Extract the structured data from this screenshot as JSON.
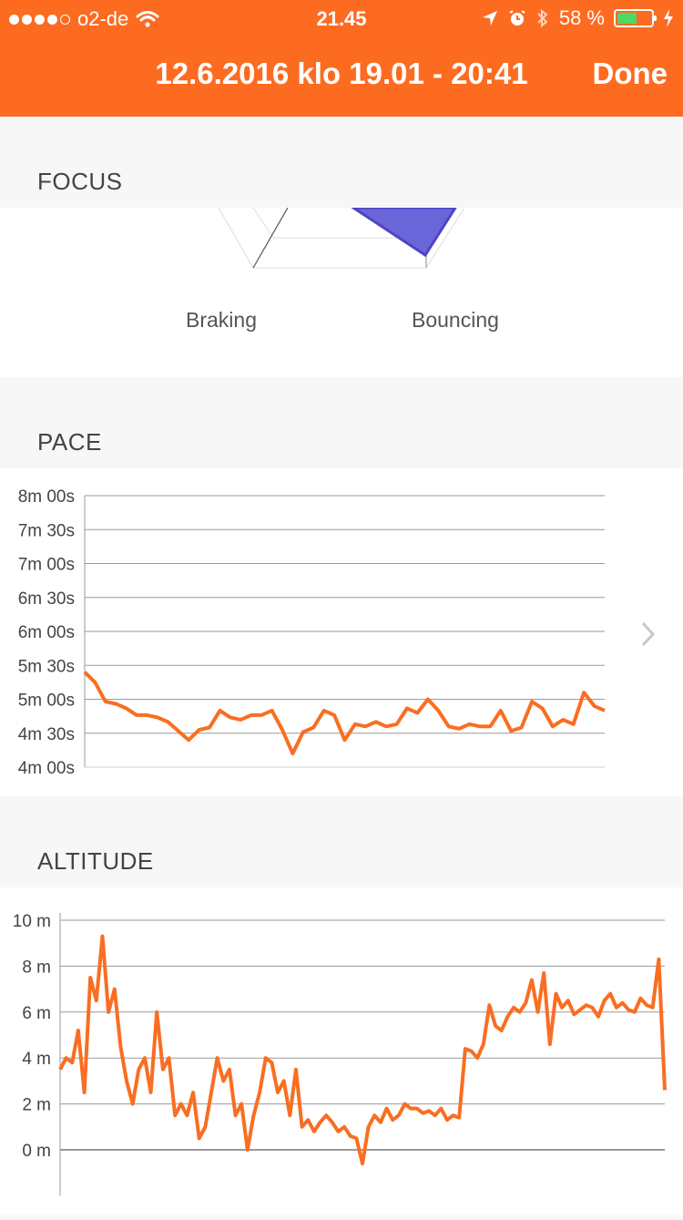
{
  "status_bar": {
    "carrier": "o2-de",
    "time": "21.45",
    "battery": "58 %",
    "battery_level": 0.58,
    "signal_filled": 4,
    "signal_total": 5,
    "battery_color": "#4cd964"
  },
  "nav": {
    "title": "12.6.2016 klo 19.01 - 20:41",
    "done_label": "Done",
    "accent": "#fd6b21"
  },
  "focus": {
    "header": "FOCUS",
    "labels": [
      "Braking",
      "Bouncing"
    ],
    "fill_color": "#6a65d8"
  },
  "chevron_icon": "chevron-right-icon",
  "pace": {
    "header": "PACE",
    "chart_data": {
      "type": "line",
      "title": "",
      "xlabel": "",
      "ylabel": "",
      "y_ticks": [
        "8m 00s",
        "7m 30s",
        "7m 00s",
        "6m 30s",
        "6m 00s",
        "5m 30s",
        "5m 00s",
        "4m 30s",
        "4m 00s"
      ],
      "ylim_seconds": [
        240,
        480
      ],
      "grid": true,
      "series": [
        {
          "color": "#f96e22",
          "x": [
            0,
            2,
            4,
            6,
            8,
            10,
            12,
            14,
            16,
            18,
            20,
            22,
            24,
            26,
            28,
            30,
            32,
            34,
            36,
            38,
            40,
            42,
            44,
            46,
            48,
            50,
            52,
            54,
            56,
            58,
            60,
            62,
            64,
            66,
            68,
            70,
            72,
            74,
            76,
            78,
            80,
            82,
            84,
            86,
            88,
            90,
            92,
            94,
            96,
            98,
            100
          ],
          "y_seconds": [
            324,
            315,
            298,
            296,
            292,
            286,
            286,
            284,
            280,
            272,
            264,
            273,
            275,
            290,
            284,
            282,
            286,
            286,
            290,
            273,
            252,
            271,
            275,
            290,
            286,
            264,
            278,
            276,
            280,
            276,
            278,
            292,
            288,
            300,
            290,
            276,
            274,
            278,
            276,
            276,
            290,
            272,
            275,
            298,
            292,
            276,
            282,
            278,
            306,
            294,
            290
          ]
        }
      ]
    }
  },
  "altitude": {
    "header": "ALTITUDE",
    "chart_data": {
      "type": "line",
      "title": "",
      "xlabel": "",
      "ylabel": "",
      "y_ticks": [
        "10 m",
        "8 m",
        "6 m",
        "4 m",
        "2 m",
        "0 m"
      ],
      "ylim": [
        -1.6,
        10
      ],
      "grid": true,
      "series": [
        {
          "color": "#f96e22",
          "x": [
            0,
            1,
            2,
            3,
            4,
            5,
            6,
            7,
            8,
            9,
            10,
            11,
            12,
            13,
            14,
            15,
            16,
            17,
            18,
            19,
            20,
            21,
            22,
            23,
            24,
            25,
            26,
            27,
            28,
            29,
            30,
            31,
            32,
            33,
            34,
            35,
            36,
            37,
            38,
            39,
            40,
            41,
            42,
            43,
            44,
            45,
            46,
            47,
            48,
            49,
            50,
            51,
            52,
            53,
            54,
            55,
            56,
            57,
            58,
            59,
            60,
            61,
            62,
            63,
            64,
            65,
            66,
            67,
            68,
            69,
            70,
            71,
            72,
            73,
            74,
            75,
            76,
            77,
            78,
            79,
            80,
            81,
            82,
            83,
            84,
            85,
            86,
            87,
            88,
            89,
            90,
            91,
            92,
            93,
            94,
            95,
            96,
            97,
            98,
            99,
            100
          ],
          "y": [
            3.5,
            4,
            3.8,
            5.2,
            2.5,
            7.5,
            6.5,
            9.3,
            6,
            7,
            4.5,
            3,
            2,
            3.5,
            4,
            2.5,
            6,
            3.5,
            4,
            1.5,
            2,
            1.5,
            2.5,
            0.5,
            1,
            2.5,
            4,
            3,
            3.5,
            1.5,
            2,
            0,
            1.5,
            2.5,
            4,
            3.8,
            2.5,
            3,
            1.5,
            3.5,
            1,
            1.3,
            0.8,
            1.2,
            1.5,
            1.2,
            0.8,
            1,
            0.6,
            0.5,
            -0.6,
            1,
            1.5,
            1.2,
            1.8,
            1.3,
            1.5,
            2,
            1.8,
            1.8,
            1.6,
            1.7,
            1.5,
            1.8,
            1.3,
            1.5,
            1.4,
            4.4,
            4.3,
            4.0,
            4.6,
            6.3,
            5.4,
            5.2,
            5.8,
            6.2,
            6.0,
            6.4,
            7.4,
            6.0,
            7.7,
            4.6,
            6.8,
            6.2,
            6.5,
            5.9,
            6.1,
            6.3,
            6.2,
            5.8,
            6.5,
            6.8,
            6.2,
            6.4,
            6.1,
            6.0,
            6.6,
            6.3,
            6.2,
            8.3,
            2.6
          ]
        }
      ]
    }
  }
}
